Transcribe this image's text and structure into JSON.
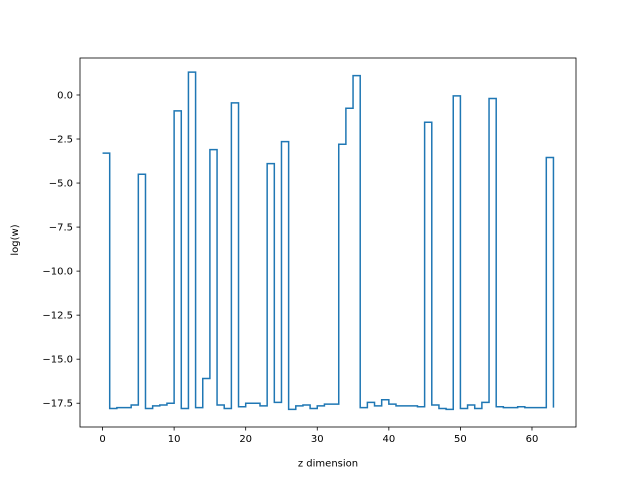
{
  "chart_data": {
    "type": "line",
    "drawstyle": "steps-post",
    "xlabel": "z dimension",
    "ylabel": "log(w)",
    "xlim": [
      -3.15,
      66.15
    ],
    "ylim": [
      -18.85,
      2.1
    ],
    "xticks": [
      0,
      10,
      20,
      30,
      40,
      50,
      60
    ],
    "xtick_labels": [
      "0",
      "10",
      "20",
      "30",
      "40",
      "50",
      "60"
    ],
    "yticks": [
      0.0,
      -2.5,
      -5.0,
      -7.5,
      -10.0,
      -12.5,
      -15.0,
      -17.5
    ],
    "ytick_labels": [
      "0.0",
      "−2.5",
      "−5.0",
      "−7.5",
      "−10.0",
      "−12.5",
      "−15.0",
      "−17.5"
    ],
    "grid": false,
    "line_color": "#1f77b4",
    "series": [
      {
        "x": [
          0,
          1,
          2,
          3,
          4,
          5,
          6,
          7,
          8,
          9,
          10,
          11,
          12,
          13,
          14,
          15,
          16,
          17,
          18,
          19,
          20,
          21,
          22,
          23,
          24,
          25,
          26,
          27,
          28,
          29,
          30,
          31,
          32,
          33,
          34,
          35,
          36,
          37,
          38,
          39,
          40,
          41,
          42,
          43,
          44,
          45,
          46,
          47,
          48,
          49,
          50,
          51,
          52,
          53,
          54,
          55,
          56,
          57,
          58,
          59,
          60,
          61,
          62,
          63
        ],
        "y": [
          -3.3,
          -17.8,
          -17.75,
          -17.75,
          -17.6,
          -4.5,
          -17.8,
          -17.65,
          -17.6,
          -17.5,
          -0.9,
          -17.8,
          1.3,
          -17.75,
          -16.1,
          -3.1,
          -17.6,
          -17.8,
          -0.45,
          -17.7,
          -17.5,
          -17.5,
          -17.65,
          -3.9,
          -17.45,
          -2.65,
          -17.85,
          -17.65,
          -17.6,
          -17.8,
          -17.65,
          -17.55,
          -17.55,
          -2.8,
          -0.75,
          1.1,
          -17.75,
          -17.45,
          -17.65,
          -17.3,
          -17.55,
          -17.65,
          -17.65,
          -17.65,
          -17.7,
          -1.55,
          -17.6,
          -17.8,
          -17.85,
          -0.05,
          -17.8,
          -17.6,
          -17.8,
          -17.45,
          -0.2,
          -17.7,
          -17.75,
          -17.75,
          -17.7,
          -17.75,
          -17.75,
          -17.75,
          -3.55,
          -17.75
        ]
      }
    ]
  }
}
